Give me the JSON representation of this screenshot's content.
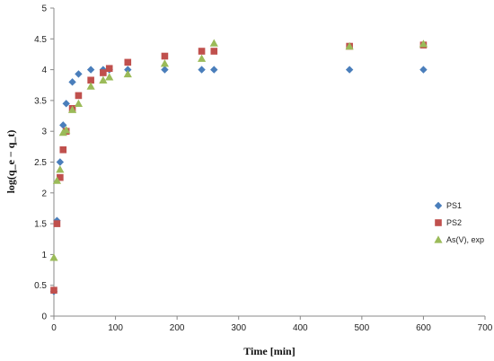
{
  "chart_data": {
    "type": "scatter",
    "title": "",
    "xlabel": "Time [min]",
    "ylabel": "log(q_e − q_t)",
    "xlim": [
      0,
      700
    ],
    "ylim": [
      0,
      5
    ],
    "xticks": [
      "0",
      "100",
      "200",
      "300",
      "400",
      "500",
      "600",
      "700"
    ],
    "yticks": [
      "0",
      "0.5",
      "1",
      "1.5",
      "2",
      "2.5",
      "3",
      "3.5",
      "4",
      "4.5",
      "5"
    ],
    "grid": false,
    "legend_position": "right",
    "series": [
      {
        "name": "PS1",
        "marker": "diamond",
        "color": "#4a7ebb",
        "x": [
          0,
          5,
          10,
          15,
          20,
          30,
          40,
          60,
          80,
          90,
          120,
          180,
          240,
          260,
          480,
          600
        ],
        "y": [
          0.4,
          1.55,
          2.5,
          3.1,
          3.45,
          3.8,
          3.93,
          4.0,
          4.0,
          4.0,
          4.0,
          4.0,
          4.0,
          4.0,
          4.0,
          4.0
        ]
      },
      {
        "name": "PS2",
        "marker": "square",
        "color": "#c0504d",
        "x": [
          0,
          5,
          10,
          15,
          20,
          30,
          40,
          60,
          80,
          90,
          120,
          180,
          240,
          260,
          480,
          600
        ],
        "y": [
          0.42,
          1.5,
          2.25,
          2.7,
          3.0,
          3.37,
          3.58,
          3.83,
          3.95,
          4.02,
          4.12,
          4.22,
          4.3,
          4.3,
          4.38,
          4.4
        ]
      },
      {
        "name": "As(V), exp",
        "marker": "triangle",
        "color": "#9bbb59",
        "x": [
          0,
          5,
          10,
          15,
          20,
          30,
          40,
          60,
          80,
          90,
          120,
          180,
          240,
          260,
          480,
          600
        ],
        "y": [
          0.95,
          2.2,
          2.38,
          2.98,
          3.02,
          3.35,
          3.45,
          3.73,
          3.83,
          3.88,
          3.93,
          4.1,
          4.18,
          4.43,
          4.38,
          4.42
        ]
      }
    ]
  }
}
